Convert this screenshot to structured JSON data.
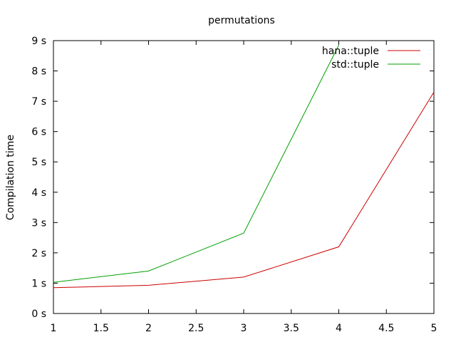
{
  "chart_data": {
    "type": "line",
    "title": "permutations",
    "xlabel": "",
    "ylabel": "Compilation time",
    "xlim": [
      1,
      5
    ],
    "ylim": [
      0,
      9
    ],
    "x_ticks": [
      {
        "value": 1,
        "label": "1"
      },
      {
        "value": 1.5,
        "label": "1.5"
      },
      {
        "value": 2,
        "label": "2"
      },
      {
        "value": 2.5,
        "label": "2.5"
      },
      {
        "value": 3,
        "label": "3"
      },
      {
        "value": 3.5,
        "label": "3.5"
      },
      {
        "value": 4,
        "label": "4"
      },
      {
        "value": 4.5,
        "label": "4.5"
      },
      {
        "value": 5,
        "label": "5"
      }
    ],
    "y_ticks": [
      {
        "value": 0,
        "label": "0 s"
      },
      {
        "value": 1,
        "label": "1 s"
      },
      {
        "value": 2,
        "label": "2 s"
      },
      {
        "value": 3,
        "label": "3 s"
      },
      {
        "value": 4,
        "label": "4 s"
      },
      {
        "value": 5,
        "label": "5 s"
      },
      {
        "value": 6,
        "label": "6 s"
      },
      {
        "value": 7,
        "label": "7 s"
      },
      {
        "value": 8,
        "label": "8 s"
      },
      {
        "value": 9,
        "label": "9 s"
      }
    ],
    "grid": false,
    "legend_position": "top-right",
    "series": [
      {
        "name": "hana::tuple",
        "color": "#cc0000",
        "x": [
          1,
          2,
          3,
          4,
          5
        ],
        "y": [
          0.85,
          0.93,
          1.2,
          2.2,
          7.3
        ]
      },
      {
        "name": "std::tuple",
        "color": "#00a000",
        "x": [
          1,
          2,
          3,
          4
        ],
        "y": [
          1.03,
          1.4,
          2.65,
          8.85
        ]
      }
    ]
  }
}
